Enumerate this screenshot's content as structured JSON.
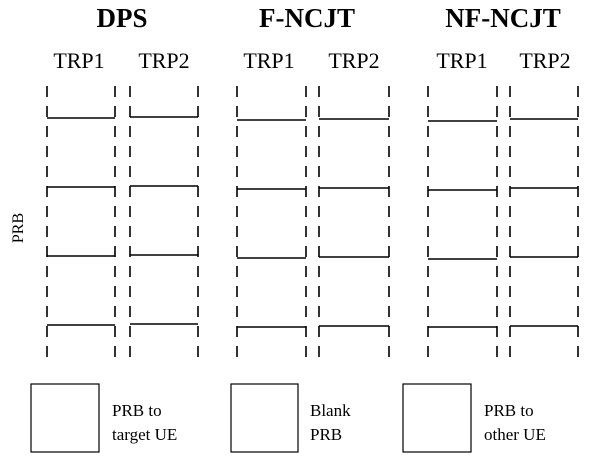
{
  "schemes": [
    {
      "title": "DPS",
      "trps": [
        "TRP1",
        "TRP2"
      ]
    },
    {
      "title": "F-NCJT",
      "trps": [
        "TRP1",
        "TRP2"
      ]
    },
    {
      "title": "NF-NCJT",
      "trps": [
        "TRP1",
        "TRP2"
      ]
    }
  ],
  "axis_label": "PRB",
  "legend": [
    {
      "line1": "PRB to",
      "line2": "target UE"
    },
    {
      "line1": "Blank",
      "line2": "PRB"
    },
    {
      "line1": "PRB to",
      "line2": "other UE"
    }
  ]
}
